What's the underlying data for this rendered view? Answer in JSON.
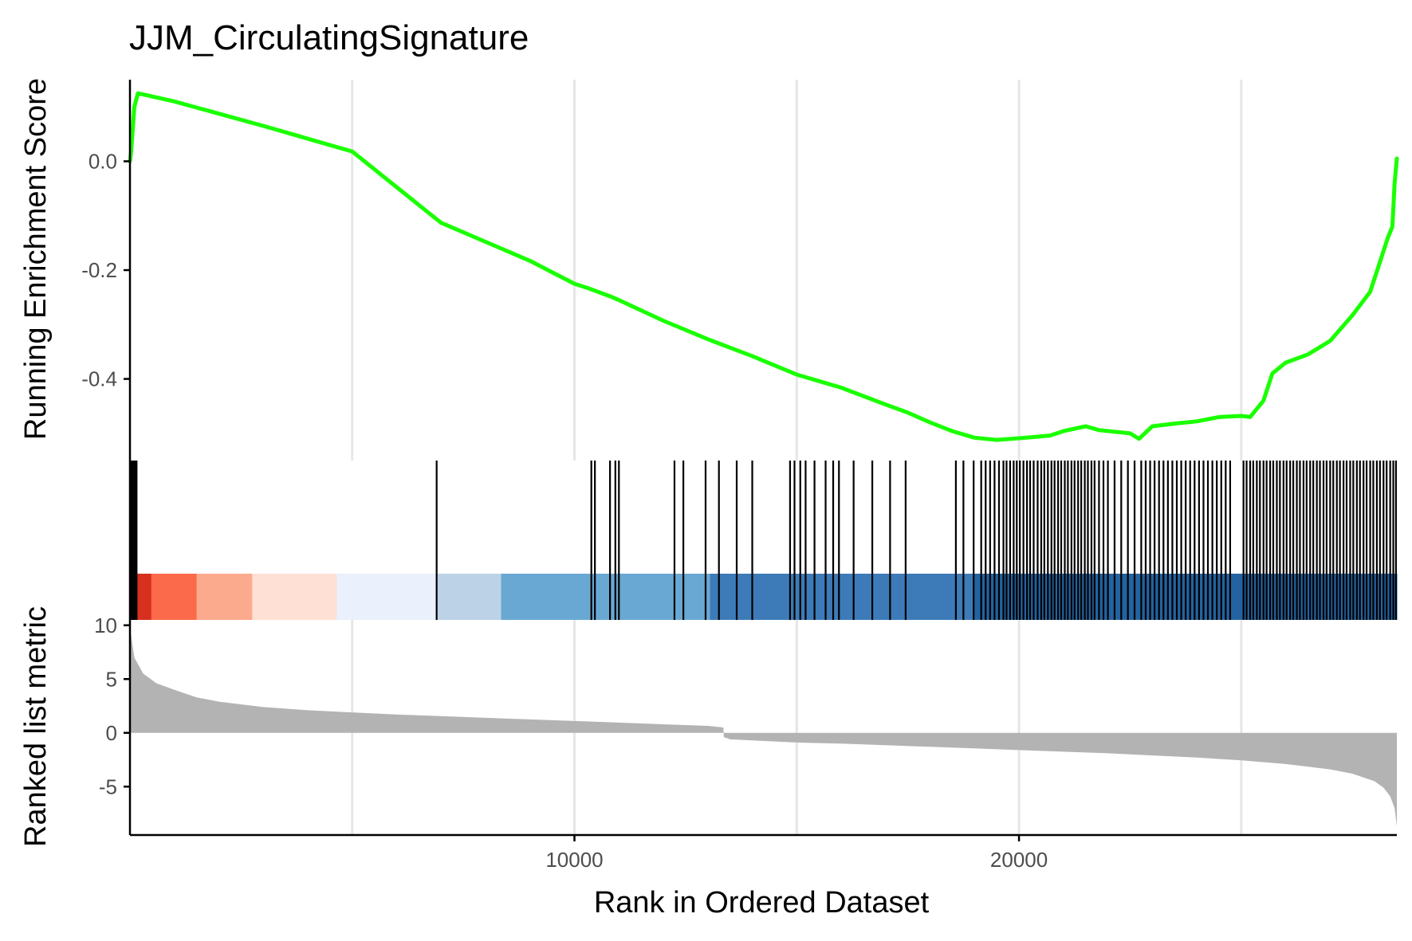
{
  "chart_data": {
    "type": "line",
    "title": "JJM_CirculatingSignature",
    "xlabel": "Rank in Ordered Dataset",
    "xlim": [
      1,
      28500
    ],
    "x_ticks": [
      10000,
      20000
    ],
    "x_tick_labels": [
      "10000",
      "20000"
    ],
    "grid": "vertical major and minor lines",
    "colors": {
      "es_line": "#1aff00",
      "metric_fill": "#b3b3b3",
      "hit_tick": "#000000",
      "gridline": "#e6e6e6",
      "axis": "#000000"
    },
    "enrichment_panel": {
      "ylabel": "Running Enrichment Score",
      "ylim": [
        -0.55,
        0.15
      ],
      "y_ticks": [
        0.0,
        -0.2,
        -0.4
      ],
      "y_tick_labels": [
        "0.0",
        "-0.2",
        "-0.4"
      ],
      "series": [
        {
          "x": [
            1,
            30,
            100,
            180,
            1000,
            3000,
            5000,
            6800,
            7000,
            8000,
            9000,
            10000,
            10300,
            10800,
            11000,
            12000,
            13000,
            14000,
            15000,
            16000,
            17000,
            17500,
            18000,
            18500,
            19000,
            19500,
            20000,
            20300,
            20700,
            21000,
            21500,
            21800,
            22500,
            22700,
            23000,
            23500,
            24000,
            24500,
            25000,
            25200,
            25500,
            25700,
            26000,
            26500,
            27000,
            27500,
            27900,
            28100,
            28300,
            28400,
            28450,
            28500
          ],
          "y": [
            0.0,
            0.02,
            0.1,
            0.125,
            0.11,
            0.065,
            0.018,
            -0.1,
            -0.113,
            -0.148,
            -0.183,
            -0.225,
            -0.233,
            -0.248,
            -0.255,
            -0.293,
            -0.327,
            -0.358,
            -0.392,
            -0.416,
            -0.447,
            -0.462,
            -0.48,
            -0.496,
            -0.508,
            -0.512,
            -0.509,
            -0.507,
            -0.504,
            -0.496,
            -0.487,
            -0.494,
            -0.5,
            -0.51,
            -0.487,
            -0.482,
            -0.478,
            -0.47,
            -0.468,
            -0.47,
            -0.44,
            -0.39,
            -0.37,
            -0.355,
            -0.33,
            -0.283,
            -0.24,
            -0.19,
            -0.14,
            -0.12,
            -0.04,
            0.005
          ]
        }
      ]
    },
    "hit_panel": {
      "hits": [
        30,
        60,
        90,
        120,
        150,
        6900,
        10380,
        10460,
        10800,
        10920,
        11000,
        12250,
        12450,
        12950,
        13250,
        13650,
        14000,
        14850,
        14950,
        15080,
        15200,
        15400,
        15650,
        15820,
        15950,
        16280,
        16700,
        17100,
        17450,
        18580,
        18750,
        18980,
        19150,
        19250,
        19350,
        19450,
        19550,
        19650,
        19720,
        19800,
        19880,
        19950,
        20020,
        20100,
        20180,
        20250,
        20330,
        20420,
        20500,
        20570,
        20650,
        20730,
        20800,
        20880,
        20950,
        21030,
        21100,
        21180,
        21250,
        21330,
        21400,
        21480,
        21550,
        21630,
        21700,
        21800,
        21900,
        22000,
        22150,
        22300,
        22450,
        22600,
        22750,
        22850,
        22950,
        23050,
        23150,
        23250,
        23350,
        23450,
        23550,
        23650,
        23750,
        23850,
        23950,
        24050,
        24150,
        24250,
        24350,
        24450,
        24550,
        24650,
        24750,
        25050,
        25120,
        25200,
        25270,
        25350,
        25420,
        25500,
        25570,
        25650,
        25720,
        25800,
        25870,
        25950,
        26020,
        26100,
        26170,
        26250,
        26320,
        26400,
        26470,
        26550,
        26620,
        26700,
        26770,
        26850,
        26920,
        27000,
        27070,
        27150,
        27220,
        27300,
        27370,
        27450,
        27520,
        27600,
        27670,
        27750,
        27820,
        27900,
        27970,
        28050,
        28120,
        28200,
        28270,
        28350,
        28420,
        28480
      ],
      "color_bands": [
        {
          "from": 1,
          "to": 480,
          "color": "#d7301f"
        },
        {
          "from": 480,
          "to": 1500,
          "color": "#fb6a4a"
        },
        {
          "from": 1500,
          "to": 2750,
          "color": "#fcaa8d"
        },
        {
          "from": 2750,
          "to": 4650,
          "color": "#fee0d4"
        },
        {
          "from": 4650,
          "to": 6900,
          "color": "#eaf0fc"
        },
        {
          "from": 6900,
          "to": 8350,
          "color": "#bcd2e6"
        },
        {
          "from": 8350,
          "to": 13050,
          "color": "#69a8d2"
        },
        {
          "from": 13050,
          "to": 19000,
          "color": "#3d7bb8"
        },
        {
          "from": 19000,
          "to": 28500,
          "color": "#2363a1"
        }
      ]
    },
    "metric_panel": {
      "ylabel": "Ranked list metric",
      "ylim": [
        -9.5,
        10.5
      ],
      "y_ticks": [
        10,
        5,
        0,
        -5
      ],
      "y_tick_labels": [
        "10",
        "5",
        "0",
        "-5"
      ],
      "series": [
        {
          "x": [
            1,
            30,
            100,
            300,
            600,
            1000,
            1500,
            2000,
            3000,
            4000,
            5000,
            6000,
            7000,
            8000,
            9000,
            10000,
            11000,
            12000,
            13000,
            13350,
            13360,
            13500,
            14000,
            15000,
            16000,
            17000,
            18000,
            19000,
            20000,
            21000,
            22000,
            23000,
            24000,
            25000,
            26000,
            27000,
            27500,
            28000,
            28200,
            28350,
            28450,
            28500
          ],
          "y": [
            9.8,
            9.0,
            7.0,
            5.5,
            4.6,
            4.0,
            3.3,
            2.9,
            2.4,
            2.1,
            1.9,
            1.7,
            1.55,
            1.4,
            1.25,
            1.1,
            0.95,
            0.8,
            0.65,
            0.5,
            -0.4,
            -0.6,
            -0.7,
            -0.9,
            -1.0,
            -1.15,
            -1.3,
            -1.45,
            -1.6,
            -1.75,
            -1.9,
            -2.1,
            -2.3,
            -2.55,
            -2.9,
            -3.4,
            -3.8,
            -4.5,
            -5.1,
            -5.9,
            -7.0,
            -8.7
          ]
        }
      ]
    }
  }
}
